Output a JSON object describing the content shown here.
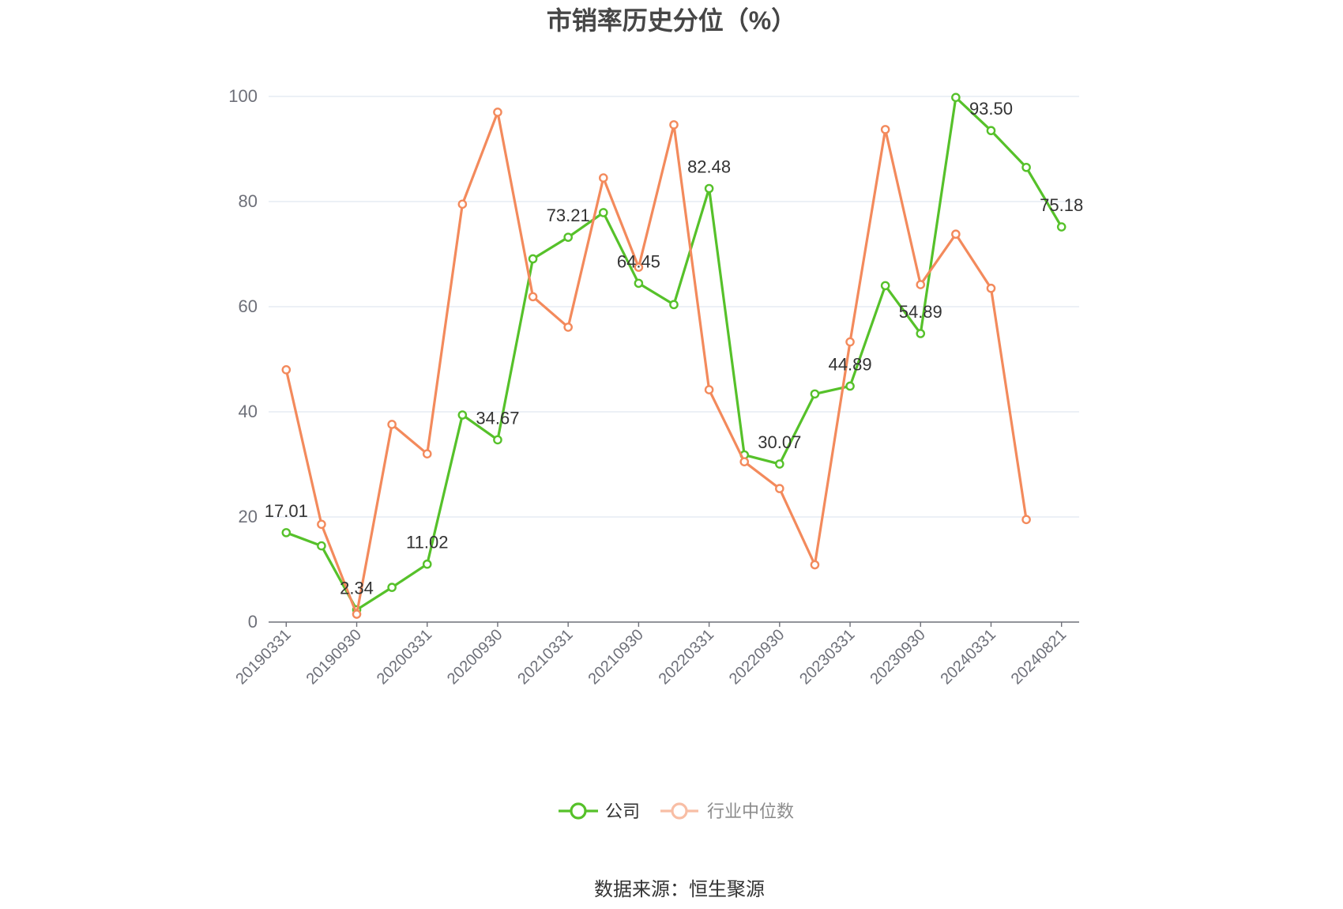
{
  "source": "数据来源：恒生聚源",
  "chart_data": {
    "type": "line",
    "title": "市销率历史分位（%）",
    "categories": [
      "20190331",
      "",
      "20190930",
      "",
      "20200331",
      "",
      "20200930",
      "",
      "20210331",
      "",
      "20210930",
      "",
      "20220331",
      "",
      "20220930",
      "",
      "20230331",
      "",
      "20230930",
      "",
      "20240331",
      "",
      "20240821"
    ],
    "ylim": [
      0,
      100
    ],
    "yticks": [
      0,
      20,
      40,
      60,
      80,
      100
    ],
    "grid": true,
    "legend_position": "bottom",
    "series": [
      {
        "name": "公司",
        "color": "#56c12a",
        "values": [
          17.01,
          14.5,
          2.34,
          6.6,
          11.02,
          39.4,
          34.67,
          69.1,
          73.21,
          77.9,
          64.45,
          60.4,
          82.48,
          31.8,
          30.07,
          43.4,
          44.89,
          64.0,
          54.89,
          99.8,
          93.5,
          86.5,
          75.18
        ],
        "data_labels": [
          "17.01",
          null,
          "2.34",
          null,
          "11.02",
          null,
          "34.67",
          null,
          "73.21",
          null,
          "64.45",
          null,
          "82.48",
          null,
          "30.07",
          null,
          "44.89",
          null,
          "54.89",
          null,
          "93.50",
          null,
          "75.18"
        ]
      },
      {
        "name": "行业中位数",
        "color": "#f38a5c",
        "values": [
          48.0,
          18.6,
          1.5,
          37.6,
          32.0,
          79.5,
          97.0,
          61.9,
          56.1,
          84.5,
          67.5,
          94.6,
          44.2,
          30.5,
          25.4,
          10.9,
          53.3,
          93.7,
          64.2,
          73.8,
          63.5,
          19.5,
          null
        ]
      }
    ]
  }
}
